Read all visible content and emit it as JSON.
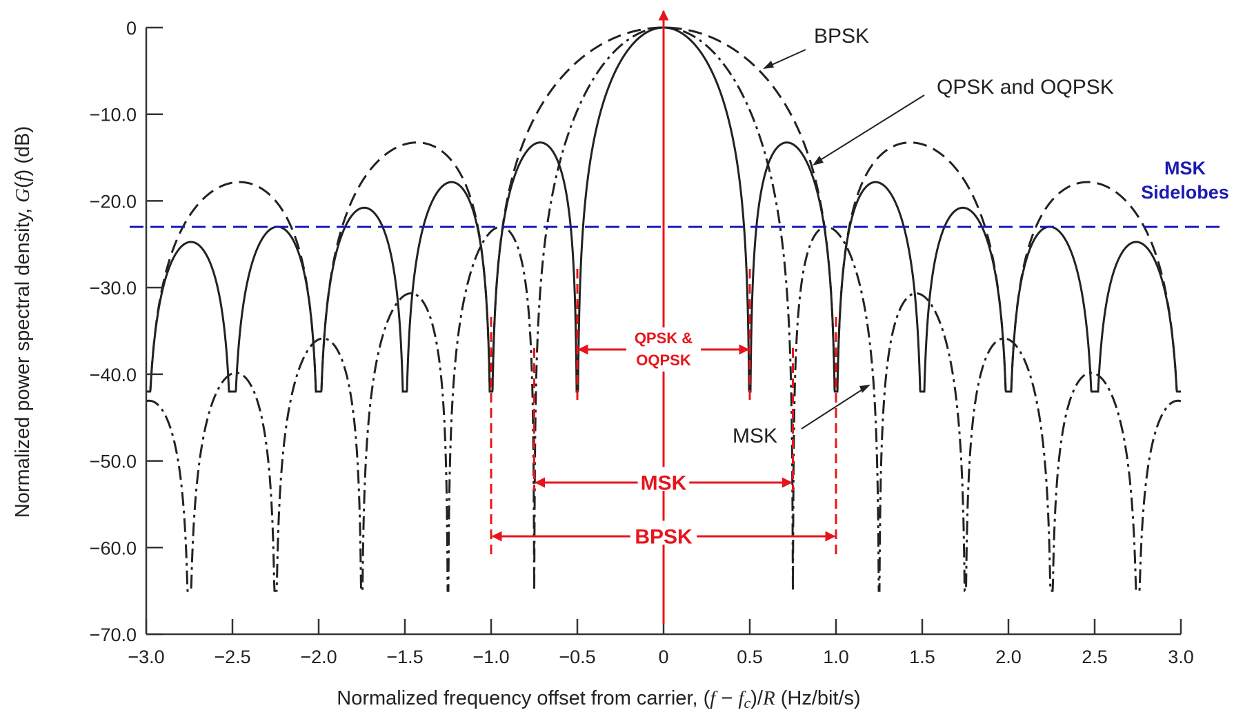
{
  "chart_data": {
    "type": "line",
    "xlabel": "Normalized frequency offset from carrier, (f − fc)/R (Hz/bit/s)",
    "ylabel": "Normalized power spectral density, G(f) (dB)",
    "xlim": [
      -3.0,
      3.0
    ],
    "ylim": [
      -70.0,
      0
    ],
    "x_ticks": [
      "−3.0",
      "−2.5",
      "−2.0",
      "−1.5",
      "−1.0",
      "−0.5",
      "0",
      "0.5",
      "1.0",
      "1.5",
      "2.0",
      "2.5",
      "3.0"
    ],
    "y_ticks": [
      "0",
      "−10.0",
      "−20.0",
      "−30.0",
      "−40.0",
      "−50.0",
      "−60.0",
      "−70.0"
    ],
    "grid": false,
    "series": [
      {
        "name": "BPSK",
        "style": "dashed",
        "main_lobe_nulls": [
          -1.0,
          1.0
        ],
        "sidelobe_peaks_db": [
          -13.0,
          -17.8
        ]
      },
      {
        "name": "QPSK and OQPSK",
        "style": "solid",
        "main_lobe_nulls": [
          -0.5,
          0.5
        ],
        "sidelobe_peaks_db": [
          -13.0,
          -17.8,
          -20.6,
          -22.4,
          -23.8
        ]
      },
      {
        "name": "MSK",
        "style": "dash-dot",
        "main_lobe_nulls": [
          -0.75,
          0.75
        ],
        "sidelobe_peaks_db": [
          -23.0,
          -30.5,
          -35.8,
          -39.5
        ]
      }
    ],
    "reference_line": {
      "label": "MSK Sidelobes",
      "y": -23.0,
      "color": "#1a1ab4"
    },
    "bandwidth_markers": [
      {
        "label": "QPSK & OQPSK",
        "from": -0.5,
        "to": 0.5
      },
      {
        "label": "MSK",
        "from": -0.75,
        "to": 0.75
      },
      {
        "label": "BPSK",
        "from": -1.0,
        "to": 1.0
      }
    ],
    "annotations": {
      "bpsk": "BPSK",
      "qpsk": "QPSK and OQPSK",
      "msk": "MSK",
      "msk_sidelobes_line1": "MSK",
      "msk_sidelobes_line2": "Sidelobes",
      "qpsk_band_line1": "QPSK &",
      "qpsk_band_line2": "OQPSK",
      "msk_band": "MSK",
      "bpsk_band": "BPSK"
    },
    "colors": {
      "curves": "#222222",
      "markers": "#e8141b",
      "reference": "#1a1ab4"
    }
  }
}
